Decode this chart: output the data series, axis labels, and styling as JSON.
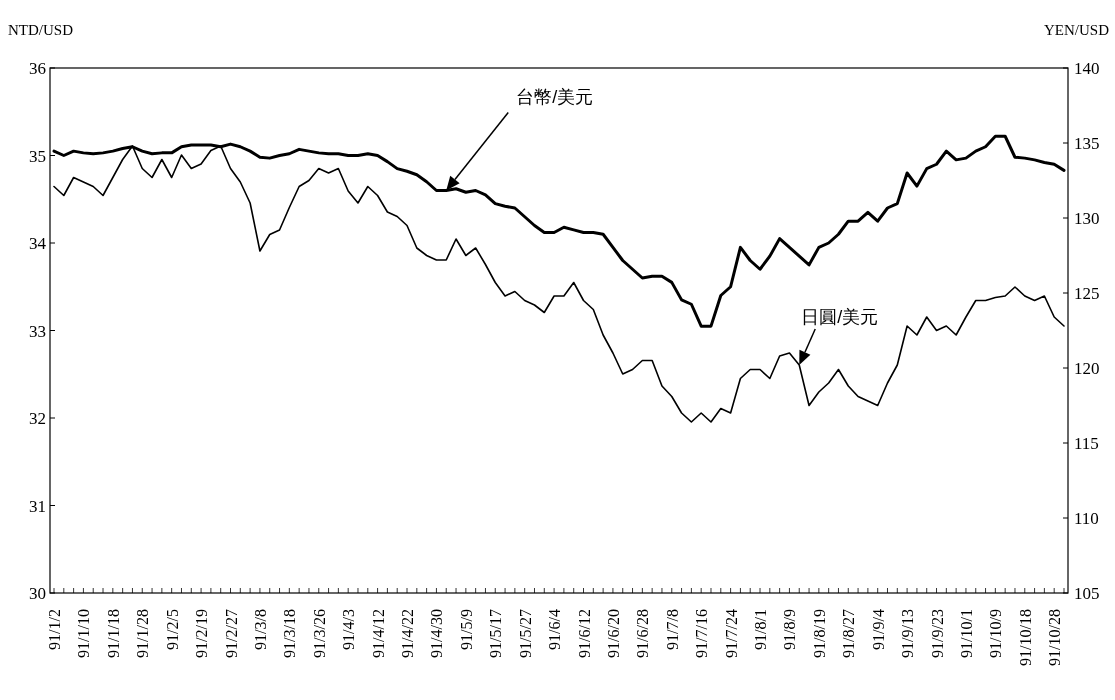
{
  "chart_data": {
    "type": "line",
    "ylabel": "NTD/USD",
    "y2label": "YEN/USD",
    "categories": [
      "91/1/2",
      null,
      null,
      "91/1/10",
      null,
      null,
      "91/1/18",
      null,
      null,
      "91/1/28",
      null,
      null,
      "91/2/5",
      null,
      null,
      "91/2/19",
      null,
      null,
      "91/2/27",
      null,
      null,
      "91/3/8",
      null,
      null,
      "91/3/18",
      null,
      null,
      "91/3/26",
      null,
      null,
      "91/4/3",
      null,
      null,
      "91/4/12",
      null,
      null,
      "91/4/22",
      null,
      null,
      "91/4/30",
      null,
      null,
      "91/5/9",
      null,
      null,
      "91/5/17",
      null,
      null,
      "91/5/27",
      null,
      null,
      "91/6/4",
      null,
      null,
      "91/6/12",
      null,
      null,
      "91/6/20",
      null,
      null,
      "91/6/28",
      null,
      null,
      "91/7/8",
      null,
      null,
      "91/7/16",
      null,
      null,
      "91/7/24",
      null,
      null,
      "91/8/1",
      null,
      null,
      "91/8/9",
      null,
      null,
      "91/8/19",
      null,
      null,
      "91/8/27",
      null,
      null,
      "91/9/4",
      null,
      null,
      "91/9/13",
      null,
      null,
      "91/9/23",
      null,
      null,
      "91/10/1",
      null,
      null,
      "91/10/9",
      null,
      null,
      "91/10/18",
      null,
      null,
      "91/10/28",
      null
    ],
    "series": [
      {
        "name": "台幣/美元",
        "color": "#000000",
        "axis": "y",
        "values": [
          35.05,
          35.0,
          35.05,
          35.03,
          35.02,
          35.03,
          35.05,
          35.08,
          35.1,
          35.05,
          35.02,
          35.03,
          35.03,
          35.1,
          35.12,
          35.12,
          35.12,
          35.1,
          35.13,
          35.1,
          35.05,
          34.98,
          34.97,
          35.0,
          35.02,
          35.07,
          35.05,
          35.03,
          35.02,
          35.02,
          35.0,
          35.0,
          35.02,
          35.0,
          34.93,
          34.85,
          34.82,
          34.78,
          34.7,
          34.6,
          34.6,
          34.62,
          34.58,
          34.6,
          34.55,
          34.45,
          34.42,
          34.4,
          34.3,
          34.2,
          34.12,
          34.12,
          34.18,
          34.15,
          34.12,
          34.12,
          34.1,
          33.95,
          33.8,
          33.7,
          33.6,
          33.62,
          33.62,
          33.55,
          33.35,
          33.3,
          33.05,
          33.05,
          33.4,
          33.5,
          33.95,
          33.8,
          33.7,
          33.85,
          34.05,
          33.95,
          33.85,
          33.75,
          33.95,
          34.0,
          34.1,
          34.25,
          34.25,
          34.35,
          34.25,
          34.4,
          34.45,
          34.8,
          34.65,
          34.85,
          34.9,
          35.05,
          34.95,
          34.97,
          35.05,
          35.1,
          35.22,
          35.22,
          34.98,
          34.97,
          34.95,
          34.92,
          34.9,
          34.83
        ]
      },
      {
        "name": "日圓/美元",
        "color": "#000000",
        "axis": "y2",
        "values": [
          132.1,
          131.5,
          132.7,
          132.4,
          132.1,
          131.5,
          132.7,
          133.9,
          134.8,
          133.3,
          132.7,
          133.9,
          132.7,
          134.2,
          133.3,
          133.6,
          134.5,
          134.8,
          133.3,
          132.4,
          131.0,
          127.8,
          128.9,
          129.2,
          130.7,
          132.1,
          132.5,
          133.3,
          133.0,
          133.3,
          131.8,
          131.0,
          132.1,
          131.5,
          130.4,
          130.1,
          129.5,
          128.0,
          127.5,
          127.2,
          127.2,
          128.6,
          127.5,
          128.0,
          126.9,
          125.7,
          124.8,
          125.1,
          124.5,
          124.2,
          123.7,
          124.8,
          124.8,
          125.7,
          124.5,
          123.9,
          122.2,
          121.0,
          119.6,
          119.9,
          120.5,
          120.5,
          118.8,
          118.1,
          117.0,
          116.4,
          117.0,
          116.4,
          117.3,
          117.0,
          119.3,
          119.9,
          119.9,
          119.3,
          120.8,
          121.0,
          120.2,
          117.5,
          118.4,
          119.0,
          119.9,
          118.8,
          118.1,
          117.8,
          117.5,
          119.0,
          120.2,
          122.8,
          122.2,
          123.4,
          122.5,
          122.8,
          122.2,
          123.4,
          124.5,
          124.5,
          124.7,
          124.8,
          125.4,
          124.8,
          124.5,
          124.8,
          123.4,
          122.8
        ]
      }
    ],
    "ylim": [
      30,
      36
    ],
    "yticks": [
      30,
      31,
      32,
      33,
      34,
      35,
      36
    ],
    "y2lim": [
      105,
      140
    ],
    "y2ticks": [
      105,
      110,
      115,
      120,
      125,
      130,
      135,
      140
    ],
    "grid": false,
    "marker": "none",
    "line_style": "solid"
  }
}
